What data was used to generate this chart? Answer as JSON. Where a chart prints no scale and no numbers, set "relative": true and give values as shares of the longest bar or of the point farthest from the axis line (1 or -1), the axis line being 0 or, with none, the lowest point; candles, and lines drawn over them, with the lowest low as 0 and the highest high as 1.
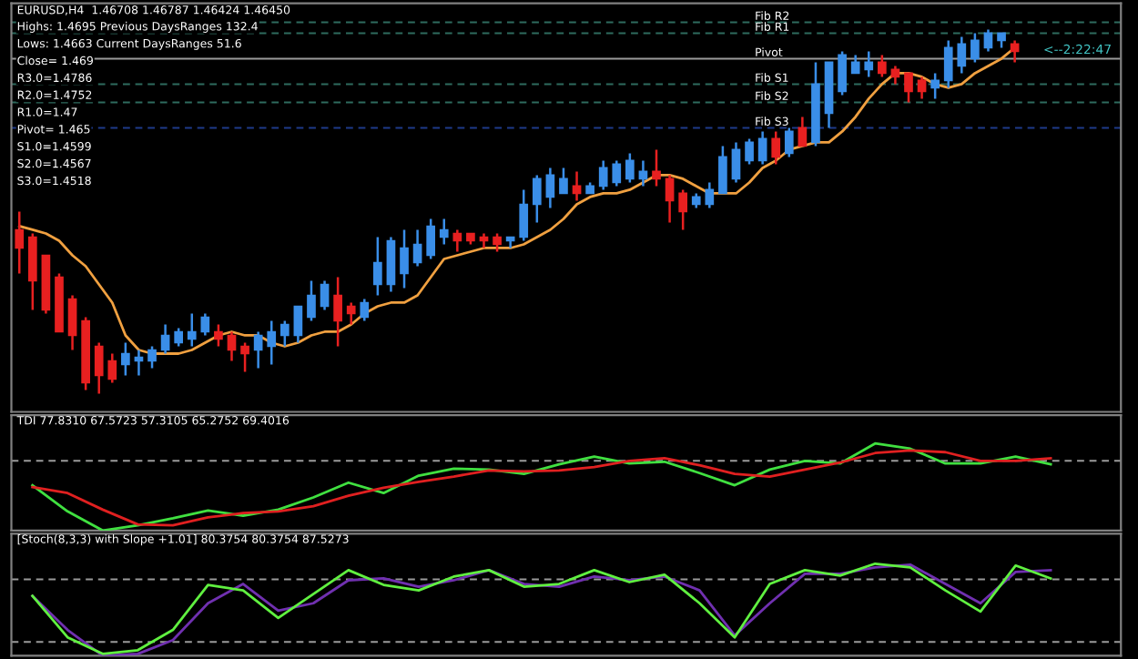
{
  "chart_data": [
    {
      "type": "candlestick",
      "relative": true,
      "title": "EURUSD,H4  1.46708 1.46787 1.46424 1.46450",
      "legend": false,
      "categories": [
        null,
        null,
        null,
        null,
        null,
        null,
        null,
        null,
        null,
        null,
        null,
        null,
        null,
        null,
        null,
        null,
        null,
        null,
        null,
        null,
        null,
        null,
        null,
        null,
        null,
        null,
        null,
        null,
        null,
        null,
        null,
        null,
        null,
        null,
        null,
        null,
        null,
        null,
        null,
        null,
        null,
        null,
        null,
        null,
        null,
        null,
        null,
        null,
        null,
        null,
        null,
        null,
        null,
        null,
        null,
        null,
        null,
        null,
        null,
        null,
        null,
        null,
        null,
        null,
        null,
        null,
        null,
        null,
        null,
        null,
        null,
        null,
        null,
        null,
        null,
        null
      ],
      "ohlc": [
        [
          0.45,
          0.5,
          0.33,
          0.4
        ],
        [
          0.43,
          0.44,
          0.23,
          0.31
        ],
        [
          0.38,
          0.38,
          0.22,
          0.23
        ],
        [
          0.32,
          0.33,
          0.17,
          0.17
        ],
        [
          0.26,
          0.27,
          0.12,
          0.16
        ],
        [
          0.2,
          0.21,
          0.01,
          0.03
        ],
        [
          0.13,
          0.14,
          0,
          0.05
        ],
        [
          0.09,
          0.11,
          0.03,
          0.04
        ],
        [
          0.08,
          0.14,
          0.05,
          0.11
        ],
        [
          0.09,
          0.12,
          0.05,
          0.1
        ],
        [
          0.09,
          0.13,
          0.07,
          0.12
        ],
        [
          0.12,
          0.19,
          0.11,
          0.16
        ],
        [
          0.14,
          0.18,
          0.13,
          0.17
        ],
        [
          0.15,
          0.22,
          0.13,
          0.17
        ],
        [
          0.17,
          0.22,
          0.16,
          0.21
        ],
        [
          0.17,
          0.19,
          0.13,
          0.15
        ],
        [
          0.16,
          0.17,
          0.09,
          0.12
        ],
        [
          0.13,
          0.14,
          0.06,
          0.11
        ],
        [
          0.12,
          0.17,
          0.07,
          0.16
        ],
        [
          0.13,
          0.2,
          0.08,
          0.17
        ],
        [
          0.16,
          0.2,
          0.13,
          0.19
        ],
        [
          0.16,
          0.24,
          0.14,
          0.24
        ],
        [
          0.21,
          0.31,
          0.2,
          0.27
        ],
        [
          0.24,
          0.31,
          0.23,
          0.3
        ],
        [
          0.27,
          0.32,
          0.13,
          0.2
        ],
        [
          0.24,
          0.25,
          0.19,
          0.22
        ],
        [
          0.21,
          0.26,
          0.2,
          0.25
        ],
        [
          0.3,
          0.43,
          0.27,
          0.36
        ],
        [
          0.3,
          0.43,
          0.28,
          0.42
        ],
        [
          0.33,
          0.45,
          0.29,
          0.4
        ],
        [
          0.36,
          0.45,
          0.35,
          0.41
        ],
        [
          0.38,
          0.48,
          0.37,
          0.46
        ],
        [
          0.43,
          0.48,
          0.41,
          0.45
        ],
        [
          0.44,
          0.45,
          0.39,
          0.42
        ],
        [
          0.44,
          0.44,
          0.41,
          0.42
        ],
        [
          0.43,
          0.44,
          0.4,
          0.42
        ],
        [
          0.43,
          0.44,
          0.39,
          0.41
        ],
        [
          0.42,
          0.43,
          0.4,
          0.43
        ],
        [
          0.43,
          0.56,
          0.42,
          0.52
        ],
        [
          0.52,
          0.6,
          0.47,
          0.59
        ],
        [
          0.54,
          0.62,
          0.51,
          0.6
        ],
        [
          0.55,
          0.62,
          0.55,
          0.59
        ],
        [
          0.57,
          0.61,
          0.53,
          0.55
        ],
        [
          0.55,
          0.58,
          0.55,
          0.57
        ],
        [
          0.57,
          0.64,
          0.56,
          0.62
        ],
        [
          0.58,
          0.64,
          0.57,
          0.63
        ],
        [
          0.59,
          0.66,
          0.58,
          0.64
        ],
        [
          0.59,
          0.64,
          0.57,
          0.61
        ],
        [
          0.61,
          0.67,
          0.57,
          0.59
        ],
        [
          0.59,
          0.6,
          0.47,
          0.53
        ],
        [
          0.55,
          0.56,
          0.45,
          0.5
        ],
        [
          0.52,
          0.55,
          0.51,
          0.54
        ],
        [
          0.52,
          0.58,
          0.51,
          0.56
        ],
        [
          0.55,
          0.68,
          0.55,
          0.65
        ],
        [
          0.59,
          0.69,
          0.58,
          0.67
        ],
        [
          0.64,
          0.7,
          0.63,
          0.69
        ],
        [
          0.64,
          0.72,
          0.63,
          0.7
        ],
        [
          0.7,
          0.72,
          0.63,
          0.65
        ],
        [
          0.66,
          0.73,
          0.65,
          0.72
        ],
        [
          0.73,
          0.76,
          0.68,
          0.68
        ],
        [
          0.69,
          0.91,
          0.68,
          0.85
        ],
        [
          0.77,
          0.91,
          0.73,
          0.91
        ],
        [
          0.83,
          0.94,
          0.82,
          0.93
        ],
        [
          0.88,
          0.93,
          0.88,
          0.91
        ],
        [
          0.89,
          0.94,
          0.87,
          0.91
        ],
        [
          0.91,
          0.93,
          0.87,
          0.88
        ],
        [
          0.89,
          0.9,
          0.85,
          0.87
        ],
        [
          0.88,
          0.88,
          0.8,
          0.83
        ],
        [
          0.86,
          0.87,
          0.81,
          0.83
        ],
        [
          0.84,
          0.88,
          0.81,
          0.86
        ],
        [
          0.86,
          0.97,
          0.84,
          0.95
        ],
        [
          0.9,
          0.98,
          0.88,
          0.96
        ],
        [
          0.92,
          0.99,
          0.91,
          0.97
        ],
        [
          0.95,
          1.0,
          0.94,
          0.99
        ],
        [
          0.97,
          0.99,
          0.95,
          0.99
        ],
        [
          0.96,
          0.97,
          0.91,
          0.94
        ]
      ],
      "colors": [
        "#e82020",
        "#e82020",
        "#e82020",
        "#e82020",
        "#e82020",
        "#e82020",
        "#e82020",
        "#e82020",
        "#3a8ee8",
        "#3a8ee8",
        "#3a8ee8",
        "#3a8ee8",
        "#3a8ee8",
        "#3a8ee8",
        "#3a8ee8",
        "#e82020",
        "#e82020",
        "#e82020",
        "#3a8ee8",
        "#3a8ee8",
        "#3a8ee8",
        "#3a8ee8",
        "#3a8ee8",
        "#3a8ee8",
        "#e82020",
        "#e82020",
        "#3a8ee8",
        "#3a8ee8",
        "#3a8ee8",
        "#3a8ee8",
        "#3a8ee8",
        "#3a8ee8",
        "#3a8ee8",
        "#e82020",
        "#e82020",
        "#e82020",
        "#e82020",
        "#3a8ee8",
        "#3a8ee8",
        "#3a8ee8",
        "#3a8ee8",
        "#3a8ee8",
        "#e82020",
        "#3a8ee8",
        "#3a8ee8",
        "#3a8ee8",
        "#3a8ee8",
        "#3a8ee8",
        "#e82020",
        "#e82020",
        "#e82020",
        "#3a8ee8",
        "#3a8ee8",
        "#3a8ee8",
        "#3a8ee8",
        "#3a8ee8",
        "#3a8ee8",
        "#e82020",
        "#3a8ee8",
        "#e82020",
        "#3a8ee8",
        "#3a8ee8",
        "#3a8ee8",
        "#3a8ee8",
        "#3a8ee8",
        "#e82020",
        "#e82020",
        "#e82020",
        "#e82020",
        "#3a8ee8",
        "#3a8ee8",
        "#3a8ee8",
        "#3a8ee8",
        "#3a8ee8",
        "#3a8ee8",
        "#e82020"
      ],
      "series": [
        {
          "type": "line",
          "color": "#f0a040",
          "values": [
            0.46,
            0.45,
            0.44,
            0.42,
            0.38,
            0.35,
            0.3,
            0.25,
            0.16,
            0.12,
            0.11,
            0.11,
            0.11,
            0.12,
            0.14,
            0.16,
            0.17,
            0.16,
            0.16,
            0.14,
            0.13,
            0.14,
            0.16,
            0.17,
            0.17,
            0.19,
            0.22,
            0.24,
            0.25,
            0.25,
            0.27,
            0.32,
            0.37,
            0.38,
            0.39,
            0.4,
            0.4,
            0.4,
            0.41,
            0.43,
            0.45,
            0.48,
            0.52,
            0.54,
            0.55,
            0.55,
            0.56,
            0.58,
            0.6,
            0.6,
            0.59,
            0.57,
            0.55,
            0.55,
            0.55,
            0.58,
            0.62,
            0.64,
            0.67,
            0.68,
            0.69,
            0.69,
            0.72,
            0.76,
            0.81,
            0.85,
            0.88,
            0.88,
            0.87,
            0.85,
            0.84,
            0.85,
            0.88,
            0.9,
            0.92,
            0.95
          ]
        }
      ],
      "ref_lines": [
        {
          "axis": "y",
          "value": 1.02,
          "label": "Fib R2",
          "color": "#2e6b5e",
          "line_style": "dashed"
        },
        {
          "axis": "y",
          "value": 0.99,
          "label": "Fib R1",
          "color": "#2e6b5e",
          "line_style": "dashed"
        },
        {
          "axis": "y",
          "value": 0.92,
          "label": "Pivot",
          "color": "#9a9a9a",
          "line_style": "solid"
        },
        {
          "axis": "y",
          "value": 0.85,
          "label": "Fib S1",
          "color": "#2e6b5e",
          "line_style": "dashed"
        },
        {
          "axis": "y",
          "value": 0.8,
          "label": "Fib S2",
          "color": "#2e6b5e",
          "line_style": "dashed"
        },
        {
          "axis": "y",
          "value": 0.73,
          "label": "Fib S3",
          "color": "#1e3a8a",
          "line_style": "dashed"
        }
      ],
      "annotations": [
        "Highs: 1.4695 Previous DaysRanges 132.4",
        "Lows: 1.4663 Current DaysRanges 51.6",
        "Close= 1.469",
        "R3.0=1.4786",
        "R2.0=1.4752",
        "R1.0=1.47",
        "Pivot= 1.465",
        "S1.0=1.4599",
        "S2.0=1.4567",
        "S3.0=1.4518",
        "<--2:22:47"
      ]
    },
    {
      "type": "line",
      "relative": true,
      "title": "TDI 77.8310 67.5723 57.3105 65.2752 69.4016",
      "legend": false,
      "categories": [
        null,
        null,
        null,
        null,
        null,
        null,
        null,
        null,
        null,
        null,
        null,
        null,
        null,
        null,
        null,
        null,
        null,
        null,
        null,
        null,
        null,
        null,
        null,
        null,
        null,
        null,
        null,
        null,
        null,
        null
      ],
      "series": [
        {
          "color": "#40e040",
          "values": [
            0.52,
            0.22,
            0,
            0.06,
            0.14,
            0.23,
            0.17,
            0.24,
            0.38,
            0.55,
            0.43,
            0.63,
            0.71,
            0.7,
            0.65,
            0.76,
            0.85,
            0.77,
            0.79,
            0.66,
            0.52,
            0.7,
            0.8,
            0.77,
            1.0,
            0.94,
            0.77,
            0.77,
            0.85,
            0.76
          ]
        },
        {
          "color": "#e02020",
          "values": [
            0.5,
            0.43,
            0.24,
            0.07,
            0.06,
            0.15,
            0.2,
            0.22,
            0.28,
            0.4,
            0.49,
            0.56,
            0.62,
            0.69,
            0.68,
            0.69,
            0.73,
            0.8,
            0.83,
            0.75,
            0.65,
            0.62,
            0.7,
            0.78,
            0.89,
            0.92,
            0.9,
            0.8,
            0.8,
            0.83
          ]
        }
      ],
      "ref_lines": [
        {
          "axis": "y",
          "value": 0.8,
          "color": "#9a9a9a",
          "line_style": "dashed"
        }
      ]
    },
    {
      "type": "line",
      "relative": true,
      "title": "[Stoch(8,3,3) with Slope +1.01] 80.3754 80.3754 87.5273",
      "legend": false,
      "categories": [
        null,
        null,
        null,
        null,
        null,
        null,
        null,
        null,
        null,
        null,
        null,
        null,
        null,
        null,
        null,
        null,
        null,
        null,
        null,
        null,
        null,
        null,
        null,
        null,
        null,
        null,
        null,
        null,
        null,
        null
      ],
      "series": [
        {
          "color": "#7030b0",
          "values": [
            0.65,
            0.28,
            0,
            0.02,
            0.17,
            0.57,
            0.78,
            0.49,
            0.57,
            0.82,
            0.84,
            0.75,
            0.82,
            0.93,
            0.78,
            0.75,
            0.86,
            0.82,
            0.86,
            0.71,
            0.22,
            0.57,
            0.89,
            0.89,
            0.96,
            0.99,
            0.78,
            0.57,
            0.91,
            0.93
          ]
        },
        {
          "color": "#60f040",
          "values": [
            0.65,
            0.2,
            0.02,
            0.06,
            0.28,
            0.77,
            0.71,
            0.41,
            0.67,
            0.93,
            0.77,
            0.71,
            0.86,
            0.93,
            0.75,
            0.78,
            0.93,
            0.8,
            0.88,
            0.57,
            0.2,
            0.78,
            0.93,
            0.87,
            1.0,
            0.96,
            0.71,
            0.48,
            0.98,
            0.84
          ]
        }
      ],
      "ref_lines": [
        {
          "axis": "y",
          "value": 0.83,
          "color": "#9a9a9a",
          "line_style": "dashed"
        },
        {
          "axis": "y",
          "value": 0.15,
          "color": "#9a9a9a",
          "line_style": "dashed"
        }
      ]
    }
  ]
}
